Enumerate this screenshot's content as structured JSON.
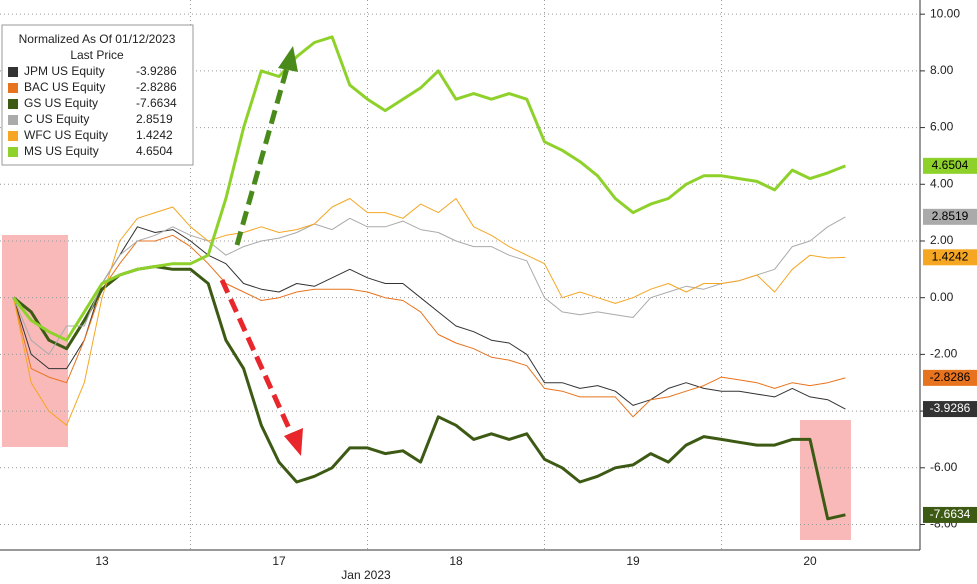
{
  "chart_data": {
    "type": "line",
    "categories": [
      null,
      null,
      null,
      null,
      null,
      "13",
      null,
      null,
      null,
      null,
      null,
      null,
      null,
      null,
      null,
      "17",
      null,
      null,
      null,
      null,
      null,
      null,
      null,
      null,
      null,
      "18",
      null,
      null,
      null,
      null,
      null,
      null,
      null,
      null,
      null,
      "19",
      null,
      null,
      null,
      null,
      null,
      null,
      null,
      null,
      null,
      "20",
      null,
      null
    ],
    "xlabel": "Jan 2023",
    "legend_title": "Normalized As Of 01/12/2023",
    "legend_subtitle": "Last Price",
    "ylim": [
      -8.9,
      10.5
    ],
    "yticks": [
      {
        "value": 10,
        "label": "10.00"
      },
      {
        "value": 8,
        "label": "8.00"
      },
      {
        "value": 6,
        "label": "6.00"
      },
      {
        "value": 4,
        "label": "4.00"
      },
      {
        "value": 2,
        "label": "2.00"
      },
      {
        "value": 0,
        "label": "0.00"
      },
      {
        "value": -2,
        "label": "-2.00"
      },
      {
        "value": -4,
        "label": "-4.00"
      },
      {
        "value": -6,
        "label": "-6.00"
      },
      {
        "value": -8,
        "label": "-8.00"
      }
    ],
    "grid": true,
    "series": [
      {
        "name": "JPM US Equity",
        "last_price": -3.9286,
        "color": "#333333",
        "label_text": "#ffffff",
        "width": 1,
        "values": [
          0,
          -2,
          -2.5,
          -2.5,
          -1.5,
          0.5,
          1.5,
          2.5,
          2.3,
          2.4,
          2.0,
          1.5,
          1.2,
          0.5,
          0.3,
          0.2,
          0.5,
          0.4,
          0.7,
          1.0,
          0.7,
          0.5,
          0.5,
          0.0,
          -0.5,
          -1.0,
          -1.2,
          -1.5,
          -1.6,
          -2.0,
          -3.0,
          -3.0,
          -3.2,
          -3.1,
          -3.3,
          -3.8,
          -3.6,
          -3.2,
          -3.0,
          -3.2,
          -3.3,
          -3.3,
          -3.4,
          -3.5,
          -3.2,
          -3.5,
          -3.6,
          -3.93
        ]
      },
      {
        "name": "BAC US Equity",
        "last_price": -2.8286,
        "color": "#e8731e",
        "label_text": "#000000",
        "width": 1,
        "values": [
          0,
          -2.5,
          -2.8,
          -3,
          -1.5,
          0.3,
          1.2,
          2.0,
          2.0,
          2.2,
          1.8,
          1.2,
          0.5,
          0.2,
          -0.1,
          0.0,
          0.2,
          0.3,
          0.3,
          0.3,
          0.2,
          0.0,
          -0.1,
          -0.5,
          -1.3,
          -1.6,
          -1.8,
          -2.1,
          -2.2,
          -2.4,
          -3.2,
          -3.3,
          -3.5,
          -3.5,
          -3.5,
          -4.2,
          -3.6,
          -3.5,
          -3.3,
          -3.1,
          -2.8,
          -2.9,
          -3.0,
          -3.2,
          -3.0,
          -3.1,
          -3.0,
          -2.83
        ]
      },
      {
        "name": "GS US Equity",
        "last_price": -7.6634,
        "color": "#3d5a14",
        "label_text": "#ffffff",
        "width": 3,
        "values": [
          0,
          -0.5,
          -1.5,
          -1.8,
          -0.8,
          0.3,
          0.8,
          1.0,
          1.1,
          1.0,
          1.0,
          0.5,
          -1.5,
          -2.5,
          -4.5,
          -5.8,
          -6.5,
          -6.3,
          -6.0,
          -5.3,
          -5.3,
          -5.5,
          -5.4,
          -5.8,
          -4.2,
          -4.5,
          -5.0,
          -4.8,
          -5.0,
          -4.8,
          -5.7,
          -6.0,
          -6.5,
          -6.3,
          -6.0,
          -5.9,
          -5.5,
          -5.8,
          -5.2,
          -4.9,
          -5.0,
          -5.1,
          -5.2,
          -5.2,
          -5.0,
          -5.0,
          -7.8,
          -7.66
        ]
      },
      {
        "name": "C US Equity",
        "last_price": 2.8519,
        "color": "#aaaaaa",
        "label_text": "#000000",
        "width": 1,
        "values": [
          0,
          -1.5,
          -2,
          -1,
          -1,
          0.5,
          1.5,
          2.0,
          2.2,
          2.5,
          2.2,
          2.0,
          1.5,
          1.8,
          2.0,
          2.1,
          2.3,
          2.6,
          2.4,
          2.8,
          2.5,
          2.5,
          2.7,
          2.4,
          2.3,
          2.0,
          1.8,
          1.8,
          1.5,
          1.3,
          0.0,
          -0.5,
          -0.6,
          -0.5,
          -0.6,
          -0.7,
          0.0,
          0.2,
          0.4,
          0.3,
          0.5,
          0.6,
          0.8,
          1.0,
          1.8,
          2.0,
          2.5,
          2.85
        ]
      },
      {
        "name": "WFC US Equity",
        "last_price": 1.4242,
        "color": "#f5a623",
        "label_text": "#000000",
        "width": 1,
        "values": [
          0,
          -3,
          -4,
          -4.5,
          -3,
          0,
          2,
          2.8,
          3.0,
          3.2,
          2.5,
          2.0,
          2.2,
          2.3,
          2.5,
          2.3,
          2.4,
          2.6,
          3.2,
          3.5,
          3.0,
          3.0,
          2.8,
          3.3,
          3.0,
          3.5,
          2.5,
          2.2,
          1.8,
          1.5,
          1.2,
          0.0,
          0.2,
          0.0,
          -0.2,
          0.0,
          0.3,
          0.5,
          0.2,
          0.5,
          0.5,
          0.6,
          0.8,
          0.2,
          1.0,
          1.5,
          1.4,
          1.42
        ]
      },
      {
        "name": "MS US Equity",
        "last_price": 4.6504,
        "color": "#8fd12b",
        "label_text": "#000000",
        "width": 3,
        "values": [
          0,
          -0.8,
          -1.2,
          -1.5,
          -0.5,
          0.5,
          0.8,
          1.0,
          1.1,
          1.2,
          1.2,
          1.5,
          3.5,
          6,
          8,
          7.8,
          8.5,
          9,
          9.2,
          7.5,
          7.0,
          6.6,
          7.0,
          7.4,
          8.0,
          7.0,
          7.2,
          7.0,
          7.2,
          7.0,
          5.5,
          5.2,
          4.8,
          4.3,
          3.5,
          3.0,
          3.3,
          3.5,
          4.0,
          4.3,
          4.3,
          4.2,
          4.1,
          3.8,
          4.5,
          4.2,
          4.4,
          4.65
        ]
      }
    ]
  }
}
